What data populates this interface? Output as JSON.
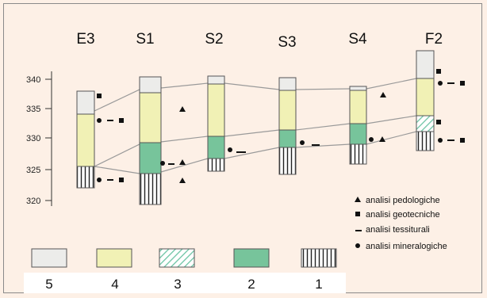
{
  "boreholes": [
    {
      "label": "E3"
    },
    {
      "label": "S1"
    },
    {
      "label": "S2"
    },
    {
      "label": "S3"
    },
    {
      "label": "S4"
    },
    {
      "label": "F2"
    }
  ],
  "axis": {
    "ticks": [
      "340",
      "335",
      "330",
      "325",
      "320"
    ]
  },
  "legend_analyses": [
    {
      "symbol": "triangle",
      "label": "analisi pedologiche"
    },
    {
      "symbol": "square",
      "label": "analisi geotecniche"
    },
    {
      "symbol": "dash",
      "label": "analisi tessiturali"
    },
    {
      "symbol": "dot",
      "label": "analisi mineralogiche"
    }
  ],
  "legend_units": [
    {
      "number": "5",
      "fill": "#ececea"
    },
    {
      "number": "4",
      "fill": "#f1f1b5"
    },
    {
      "number": "3",
      "fill": "hatch"
    },
    {
      "number": "2",
      "fill": "#77c49b"
    },
    {
      "number": "1",
      "fill": "vertical-lines"
    }
  ],
  "colors": {
    "background": "#fdf0e6",
    "unit5": "#ececea",
    "unit4": "#f1f1b5",
    "unit3_hatch": "#6cc4a4",
    "unit2": "#77c49b",
    "correlation_lines": "#9a9a9a"
  }
}
